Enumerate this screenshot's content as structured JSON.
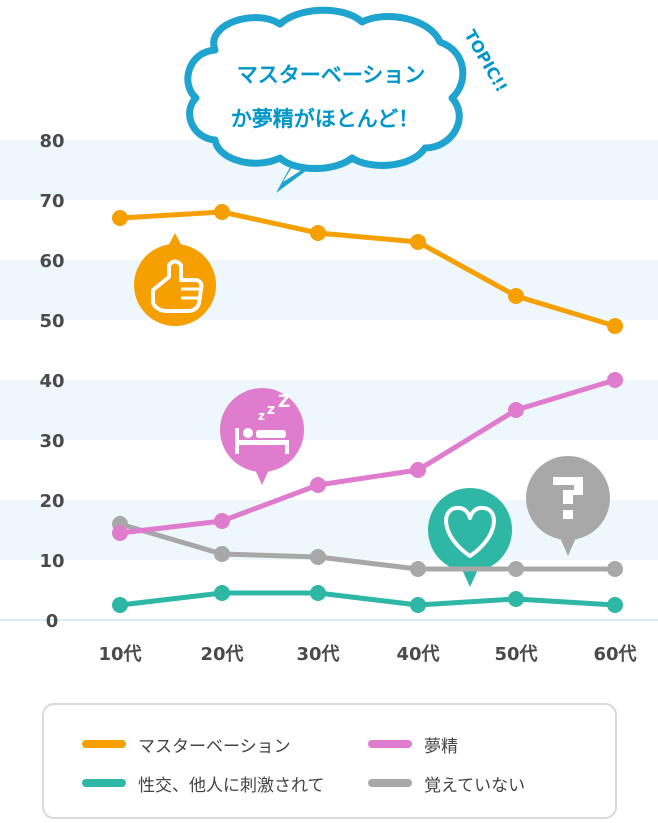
{
  "callout": {
    "line1": "マスターベーション",
    "line2": "か夢精がほとんど！",
    "tag": "TOPIC!!"
  },
  "icons": {
    "masturbation": "thumb-hand-icon",
    "wet_dream": "sleeping-bed-icon",
    "stimulated": "heart-icon",
    "dont_remember": "question-mark-icon"
  },
  "chart_data": {
    "type": "line",
    "categories": [
      "10代",
      "20代",
      "30代",
      "40代",
      "50代",
      "60代"
    ],
    "ylim": [
      0,
      80
    ],
    "yticks": [
      0,
      10,
      20,
      30,
      40,
      50,
      60,
      70,
      80
    ],
    "grid": "alternating horizontal bands",
    "legend_position": "bottom",
    "series": [
      {
        "name": "マスターベーション",
        "color": "#f5a000",
        "values": [
          67,
          68,
          64.5,
          63,
          54,
          49
        ]
      },
      {
        "name": "夢精",
        "color": "#e07ccd",
        "values": [
          14.5,
          16.5,
          22.5,
          25,
          35,
          40
        ]
      },
      {
        "name": "性交、他人に刺激されて",
        "color": "#2fb7a5",
        "values": [
          2.5,
          4.5,
          4.5,
          2.5,
          3.5,
          2.5
        ]
      },
      {
        "name": "覚えていない",
        "color": "#a8a8a8",
        "values": [
          16,
          11,
          10.5,
          8.5,
          8.5,
          8.5
        ]
      }
    ]
  }
}
